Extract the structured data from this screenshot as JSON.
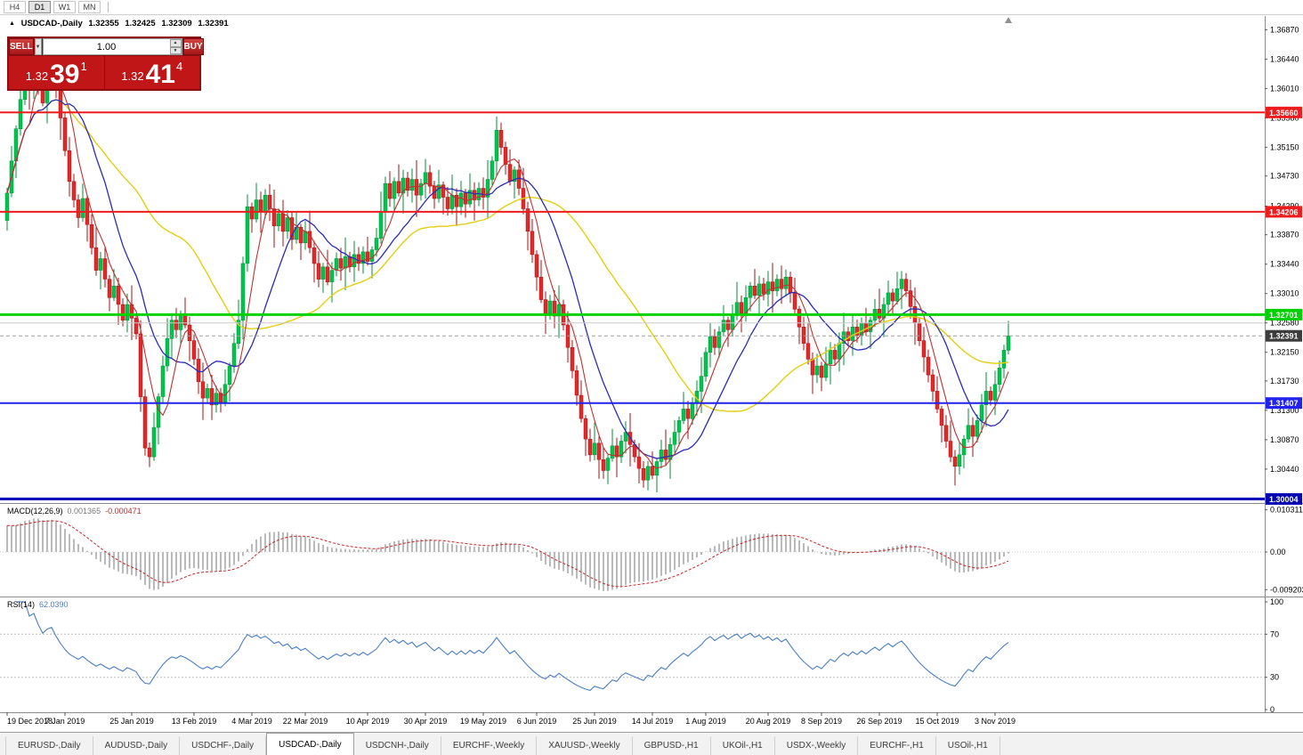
{
  "toolbar": {
    "timeframes": [
      "H4",
      "D1",
      "W1",
      "MN"
    ],
    "active": "D1"
  },
  "icons": {
    "collapse": "▲",
    "dropdown": "▼",
    "spin_up": "▲",
    "spin_down": "▼",
    "shift_marker": "▲"
  },
  "chart_header": {
    "symbol_title": "USDCAD-,Daily",
    "open": "1.32355",
    "high": "1.32425",
    "low": "1.32309",
    "close": "1.32391"
  },
  "trade_panel": {
    "sell_label": "SELL",
    "buy_label": "BUY",
    "volume": "1.00",
    "sell_price": {
      "prefix": "1.32",
      "big": "39",
      "sup": "1"
    },
    "buy_price": {
      "prefix": "1.32",
      "big": "41",
      "sup": "4"
    },
    "panel_color": "#c01618",
    "button_color": "#b01b1b"
  },
  "price_scale": {
    "ticks": [
      "1.36870",
      "1.36440",
      "1.36010",
      "1.35580",
      "1.35150",
      "1.34730",
      "1.34290",
      "1.33870",
      "1.33440",
      "1.33010",
      "1.32580",
      "1.32150",
      "1.31730",
      "1.31300",
      "1.30870",
      "1.30440"
    ]
  },
  "macd_panel": {
    "name": "MACD(12,26,9)",
    "value_main": "0.001365",
    "value_signal": "-0.000471"
  },
  "rsi_panel": {
    "name": "RSI(14)",
    "value": "62.0390"
  },
  "x_axis": {
    "dates": [
      "19 Dec 2018",
      "7 Jan 2019",
      "25 Jan 2019",
      "13 Feb 2019",
      "4 Mar 2019",
      "22 Mar 2019",
      "10 Apr 2019",
      "30 Apr 2019",
      "19 May 2019",
      "6 Jun 2019",
      "25 Jun 2019",
      "14 Jul 2019",
      "1 Aug 2019",
      "20 Aug 2019",
      "8 Sep 2019",
      "26 Sep 2019",
      "15 Oct 2019",
      "3 Nov 2019"
    ],
    "tick_indices": [
      0,
      13,
      28,
      42,
      55,
      67,
      81,
      94,
      107,
      119,
      132,
      145,
      157,
      171,
      183,
      196,
      209,
      222
    ]
  },
  "tabs": {
    "active": "USDCAD-,Daily",
    "items": [
      "EURUSD-,Daily",
      "AUDUSD-,Daily",
      "USDCHF-,Daily",
      "USDCAD-,Daily",
      "USDCNH-,Daily",
      "EURCHF-,Weekly",
      "XAUUSD-,Weekly",
      "GBPUSD-,H1",
      "UKOil-,H1",
      "USDX-,Weekly",
      "EURCHF-,H1",
      "USOil-,H1"
    ]
  },
  "chart_data": {
    "type": "candlestick",
    "symbol": "USDCAD",
    "timeframe": "Daily",
    "price_range": {
      "top": 1.3698,
      "bottom": 1.2997
    },
    "first_open": 1.3408,
    "closes": [
      1.3448,
      1.3495,
      1.3542,
      1.3585,
      1.3625,
      1.3598,
      1.3645,
      1.3612,
      1.358,
      1.3628,
      1.3652,
      1.3605,
      1.3558,
      1.351,
      1.3465,
      1.3438,
      1.3412,
      1.344,
      1.3402,
      1.3368,
      1.3335,
      1.3352,
      1.3322,
      1.3295,
      1.3312,
      1.3285,
      1.3262,
      1.3285,
      1.3265,
      1.3242,
      1.315,
      1.3075,
      1.3062,
      1.3105,
      1.315,
      1.3195,
      1.3235,
      1.3262,
      1.3248,
      1.327,
      1.3255,
      1.3232,
      1.3205,
      1.3172,
      1.3148,
      1.3162,
      1.3138,
      1.3155,
      1.3142,
      1.3168,
      1.3195,
      1.3228,
      1.3262,
      1.3345,
      1.3428,
      1.341,
      1.3438,
      1.342,
      1.3445,
      1.3425,
      1.34,
      1.3418,
      1.3392,
      1.3412,
      1.338,
      1.3398,
      1.3375,
      1.3392,
      1.3368,
      1.3345,
      1.3322,
      1.334,
      1.3318,
      1.3335,
      1.3352,
      1.3338,
      1.3355,
      1.334,
      1.3358,
      1.3345,
      1.3362,
      1.3348,
      1.3365,
      1.3382,
      1.342,
      1.3462,
      1.344,
      1.3465,
      1.3448,
      1.347,
      1.3452,
      1.3468,
      1.3445,
      1.3462,
      1.3478,
      1.3458,
      1.344,
      1.346,
      1.3442,
      1.3425,
      1.3445,
      1.3428,
      1.3448,
      1.3432,
      1.3452,
      1.3438,
      1.3455,
      1.3442,
      1.3468,
      1.3495,
      1.354,
      1.3515,
      1.349,
      1.3465,
      1.3482,
      1.3455,
      1.3425,
      1.3392,
      1.3358,
      1.3325,
      1.3292,
      1.3272,
      1.329,
      1.3268,
      1.3285,
      1.3255,
      1.3222,
      1.3188,
      1.3152,
      1.3118,
      1.3088,
      1.3065,
      1.3082,
      1.3058,
      1.3042,
      1.306,
      1.3078,
      1.3062,
      1.3085,
      1.3098,
      1.308,
      1.3062,
      1.3045,
      1.3028,
      1.3048,
      1.3035,
      1.3055,
      1.3072,
      1.3058,
      1.308,
      1.3098,
      1.3115,
      1.3132,
      1.3118,
      1.314,
      1.3158,
      1.318,
      1.3215,
      1.3238,
      1.3222,
      1.3245,
      1.3262,
      1.3248,
      1.327,
      1.3288,
      1.3272,
      1.3295,
      1.3312,
      1.3298,
      1.3315,
      1.33,
      1.3318,
      1.3305,
      1.3322,
      1.3308,
      1.3325,
      1.3302,
      1.3278,
      1.3252,
      1.3228,
      1.3205,
      1.3182,
      1.3195,
      1.3178,
      1.3198,
      1.3218,
      1.3205,
      1.3228,
      1.3245,
      1.3232,
      1.3252,
      1.324,
      1.3258,
      1.3245,
      1.3262,
      1.3278,
      1.3265,
      1.3285,
      1.3302,
      1.329,
      1.3308,
      1.3322,
      1.3305,
      1.3282,
      1.3258,
      1.3232,
      1.3208,
      1.3182,
      1.3158,
      1.3132,
      1.3108,
      1.3085,
      1.3062,
      1.3048,
      1.3065,
      1.3088,
      1.3108,
      1.3092,
      1.3115,
      1.3138,
      1.3158,
      1.3145,
      1.3168,
      1.3192,
      1.3218,
      1.32391
    ],
    "wick_up_pattern": [
      8,
      22,
      5,
      15,
      30,
      10,
      18,
      6,
      25,
      12,
      9,
      16,
      28,
      7,
      20,
      11
    ],
    "wick_dn_pattern": [
      15,
      6,
      25,
      10,
      8,
      28,
      12,
      20,
      5,
      30,
      9,
      18,
      32,
      8,
      22,
      11
    ],
    "levels": [
      {
        "price": 1.3258,
        "color": "#cccccc",
        "width": 1
      },
      {
        "price": 1.3566,
        "color": "#ee1c1c",
        "width": 2,
        "tag": "1.35660"
      },
      {
        "price": 1.34206,
        "color": "#ee1c1c",
        "width": 2,
        "tag": "1.34206"
      },
      {
        "price": 1.32701,
        "color": "#00d200",
        "width": 3,
        "tag": "1.32701"
      },
      {
        "price": 1.31407,
        "color": "#2222ee",
        "width": 2,
        "tag": "1.31407"
      },
      {
        "price": 1.30004,
        "color": "#0000b4",
        "width": 3,
        "tag": "1.30004"
      }
    ],
    "current_price": {
      "value": 1.32391,
      "label": "1.32391",
      "color": "#3c3c3c"
    },
    "ma_lines": [
      {
        "period": 40,
        "color": "#e3cf10",
        "width": 1.4
      },
      {
        "period": 14,
        "color": "#2b2bb8",
        "width": 1.3
      },
      {
        "period": 6,
        "color": "#c03030",
        "width": 1.1
      }
    ],
    "macd": {
      "fast": 12,
      "slow": 26,
      "signal": 9,
      "seed_offset": 0.007,
      "range": [
        -0.009203,
        0.010311
      ],
      "scale_labels": [
        "0.010311",
        "0.00",
        "-0.009203"
      ]
    },
    "rsi": {
      "period": 14,
      "levels": [
        70,
        30
      ],
      "range": [
        0,
        100
      ],
      "scale_labels": [
        "100",
        "70",
        "30",
        "0"
      ]
    },
    "colors": {
      "bull": "#00c44c",
      "bull_border": "#00913a",
      "bear": "#e52828",
      "bear_border": "#a31313",
      "macd_hist": "#a8a8a8",
      "macd_signal": "#cc2222",
      "rsi_line": "#4a7ec8",
      "level_dotted": "#bdbdbd"
    }
  }
}
